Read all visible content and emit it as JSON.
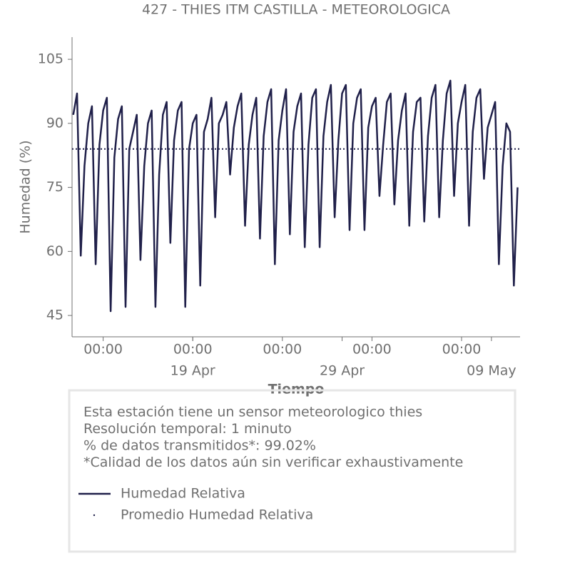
{
  "chart_data": {
    "type": "line",
    "title": "427 - THIES ITM CASTILLA - METEOROLOGICA",
    "xlabel": "Tiempo",
    "ylabel": "Humedad (%)",
    "xlim": [
      "Apr 10 22:00",
      "May 10 22:00"
    ],
    "ylim": [
      40,
      110.2
    ],
    "yticks": [
      45,
      60,
      75,
      90,
      105
    ],
    "xticks": [
      {
        "value": "Apr 13 00:00",
        "label": "00:00"
      },
      {
        "value": "Apr 19 00:00",
        "label": "00:00"
      },
      {
        "value": "Apr 25 00:00",
        "label": "00:00"
      },
      {
        "value": "May 01 00:00",
        "label": "00:00"
      },
      {
        "value": "May 07 00:00",
        "label": "00:00"
      },
      {
        "value": "Apr 19 00:00",
        "label": "19 Apr"
      },
      {
        "value": "Apr 29 00:00",
        "label": "29 Apr"
      },
      {
        "value": "May 09 00:00",
        "label": "09 May"
      }
    ],
    "x": [
      "Apr 11 00:00",
      "Apr 11 06:00",
      "Apr 11 12:00",
      "Apr 11 18:00",
      "Apr 12 00:00",
      "Apr 12 06:00",
      "Apr 12 12:00",
      "Apr 12 18:00",
      "Apr 13 00:00",
      "Apr 13 06:00",
      "Apr 13 12:00",
      "Apr 13 18:00",
      "Apr 14 00:00",
      "Apr 14 06:00",
      "Apr 14 12:00",
      "Apr 14 18:00",
      "Apr 15 00:00",
      "Apr 15 06:00",
      "Apr 15 12:00",
      "Apr 15 18:00",
      "Apr 16 00:00",
      "Apr 16 06:00",
      "Apr 16 12:00",
      "Apr 16 18:00",
      "Apr 17 00:00",
      "Apr 17 06:00",
      "Apr 17 12:00",
      "Apr 17 18:00",
      "Apr 18 00:00",
      "Apr 18 06:00",
      "Apr 18 12:00",
      "Apr 18 18:00",
      "Apr 19 00:00",
      "Apr 19 06:00",
      "Apr 19 12:00",
      "Apr 19 18:00",
      "Apr 20 00:00",
      "Apr 20 06:00",
      "Apr 20 12:00",
      "Apr 20 18:00",
      "Apr 21 00:00",
      "Apr 21 06:00",
      "Apr 21 12:00",
      "Apr 21 18:00",
      "Apr 22 00:00",
      "Apr 22 06:00",
      "Apr 22 12:00",
      "Apr 22 18:00",
      "Apr 23 00:00",
      "Apr 23 06:00",
      "Apr 23 12:00",
      "Apr 23 18:00",
      "Apr 24 00:00",
      "Apr 24 06:00",
      "Apr 24 12:00",
      "Apr 24 18:00",
      "Apr 25 00:00",
      "Apr 25 06:00",
      "Apr 25 12:00",
      "Apr 25 18:00",
      "Apr 26 00:00",
      "Apr 26 06:00",
      "Apr 26 12:00",
      "Apr 26 18:00",
      "Apr 27 00:00",
      "Apr 27 06:00",
      "Apr 27 12:00",
      "Apr 27 18:00",
      "Apr 28 00:00",
      "Apr 28 06:00",
      "Apr 28 12:00",
      "Apr 28 18:00",
      "Apr 29 00:00",
      "Apr 29 06:00",
      "Apr 29 12:00",
      "Apr 29 18:00",
      "Apr 30 00:00",
      "Apr 30 06:00",
      "Apr 30 12:00",
      "Apr 30 18:00",
      "May 01 00:00",
      "May 01 06:00",
      "May 01 12:00",
      "May 01 18:00",
      "May 02 00:00",
      "May 02 06:00",
      "May 02 12:00",
      "May 02 18:00",
      "May 03 00:00",
      "May 03 06:00",
      "May 03 12:00",
      "May 03 18:00",
      "May 04 00:00",
      "May 04 06:00",
      "May 04 12:00",
      "May 04 18:00",
      "May 05 00:00",
      "May 05 06:00",
      "May 05 12:00",
      "May 05 18:00",
      "May 06 00:00",
      "May 06 06:00",
      "May 06 12:00",
      "May 06 18:00",
      "May 07 00:00",
      "May 07 06:00",
      "May 07 12:00",
      "May 07 18:00",
      "May 08 00:00",
      "May 08 06:00",
      "May 08 12:00",
      "May 08 18:00",
      "May 09 00:00",
      "May 09 06:00",
      "May 09 12:00",
      "May 09 18:00",
      "May 10 00:00",
      "May 10 06:00",
      "May 10 12:00",
      "May 10 18:00"
    ],
    "series": [
      {
        "name": "Humedad Relativa",
        "color": "#20204a",
        "values": [
          92,
          97,
          59,
          80,
          90,
          94,
          57,
          85,
          93,
          96,
          46,
          82,
          91,
          94,
          47,
          84,
          88,
          92,
          58,
          80,
          90,
          93,
          47,
          78,
          92,
          95,
          62,
          86,
          93,
          95,
          47,
          84,
          90,
          92,
          52,
          88,
          91,
          96,
          68,
          90,
          92,
          95,
          78,
          89,
          94,
          97,
          66,
          85,
          92,
          96,
          63,
          87,
          95,
          98,
          57,
          86,
          93,
          98,
          64,
          88,
          94,
          97,
          61,
          85,
          96,
          98,
          61,
          87,
          95,
          99,
          68,
          86,
          97,
          99,
          65,
          90,
          96,
          98,
          65,
          89,
          94,
          96,
          73,
          85,
          95,
          97,
          71,
          86,
          93,
          97,
          66,
          88,
          95,
          96,
          67,
          87,
          96,
          99,
          68,
          86,
          97,
          100,
          73,
          90,
          95,
          99,
          66,
          88,
          96,
          98,
          77,
          89,
          92,
          95,
          57,
          80,
          90,
          88,
          52,
          75
        ]
      },
      {
        "name": "Promedio Humedad Relativa",
        "color": "#20204a",
        "mean": 84
      }
    ],
    "notes": [
      "Esta estación tiene un sensor meteorologico thies",
      "Resolución temporal: 1 minuto",
      "% de datos transmitidos*: 99.02%",
      "*Calidad de los datos aún sin verificar exhaustivamente"
    ]
  }
}
